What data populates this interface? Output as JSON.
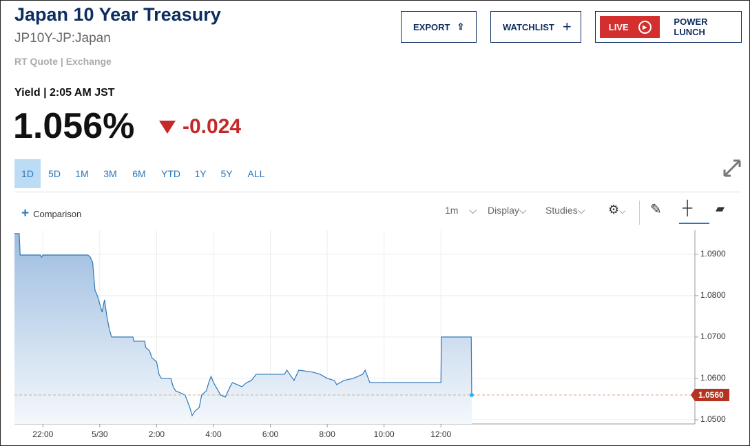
{
  "header": {
    "title": "Japan 10 Year Treasury",
    "symbol": "JP10Y-JP:Japan",
    "source": "RT Quote | Exchange",
    "quote_label": "Yield | 2:05 AM JST",
    "price": "1.056%",
    "change": "-0.024"
  },
  "buttons": [
    "EXPORT",
    "WATCHLIST",
    "LIVE",
    "POWER LUNCH"
  ],
  "ranges": [
    "1D",
    "5D",
    "1M",
    "3M",
    "6M",
    "YTD",
    "1Y",
    "5Y",
    "ALL"
  ],
  "toolbar": {
    "comparison": "Comparison",
    "interval": "1m",
    "display": "Display",
    "studies": "Studies"
  },
  "chart_data": {
    "type": "line",
    "color": "#2e78b8",
    "fill": true,
    "grid": true,
    "x": [
      "21:00",
      "21:10",
      "21:12",
      "21:55",
      "21:57",
      "22:00",
      "23:35",
      "23:40",
      "23:45",
      "23:50",
      "23:55",
      "00:05",
      "00:10",
      "00:15",
      "00:20",
      "00:25",
      "01:10",
      "01:12",
      "01:35",
      "01:37",
      "01:45",
      "01:50",
      "02:00",
      "02:05",
      "02:10",
      "02:30",
      "02:35",
      "02:40",
      "02:50",
      "03:00",
      "03:10",
      "03:15",
      "03:20",
      "03:30",
      "03:35",
      "03:45",
      "03:50",
      "03:55",
      "04:00",
      "04:10",
      "04:15",
      "04:25",
      "04:35",
      "04:40",
      "04:50",
      "05:00",
      "05:10",
      "05:20",
      "05:30",
      "06:30",
      "06:35",
      "06:50",
      "07:00",
      "07:30",
      "07:45",
      "08:00",
      "08:15",
      "08:20",
      "08:35",
      "08:55",
      "09:15",
      "09:20",
      "09:30",
      "10:00",
      "11:00",
      "12:00",
      "12:01",
      "13:04",
      "13:05"
    ],
    "values": [
      1.095,
      1.095,
      1.0898,
      1.0898,
      1.0893,
      1.0898,
      1.0898,
      1.0893,
      1.088,
      1.0813,
      1.08,
      1.076,
      1.079,
      1.075,
      1.072,
      1.07,
      1.07,
      1.069,
      1.069,
      1.0675,
      1.0667,
      1.065,
      1.064,
      1.061,
      1.06,
      1.06,
      1.058,
      1.057,
      1.0565,
      1.056,
      1.053,
      1.051,
      1.052,
      1.053,
      1.056,
      1.057,
      1.059,
      1.0605,
      1.059,
      1.057,
      1.056,
      1.0555,
      1.058,
      1.059,
      1.0585,
      1.058,
      1.059,
      1.0595,
      1.061,
      1.061,
      1.062,
      1.0595,
      1.062,
      1.0615,
      1.061,
      1.06,
      1.0595,
      1.0585,
      1.0595,
      1.06,
      1.061,
      1.062,
      1.059,
      1.059,
      1.059,
      1.059,
      1.07,
      1.07,
      1.056
    ],
    "xlim": [
      "21:00",
      "20:56"
    ],
    "xticks": [
      "22:00",
      {
        "value": "00:00",
        "label": "5/30"
      },
      "2:00",
      "4:00",
      "6:00",
      "8:00",
      "10:00",
      "12:00"
    ],
    "ylim": [
      1.049,
      1.0958
    ],
    "yticks": [
      {
        "value": 1.05,
        "label": "1.0500"
      },
      {
        "value": 1.06,
        "label": "1.0600"
      },
      {
        "value": 1.07,
        "label": "1.0700"
      },
      {
        "value": 1.08,
        "label": "1.0800"
      },
      {
        "value": 1.09,
        "label": "1.0900"
      }
    ],
    "last": {
      "value": 1.056,
      "label": "1.0560",
      "color": "#b5341f"
    }
  }
}
